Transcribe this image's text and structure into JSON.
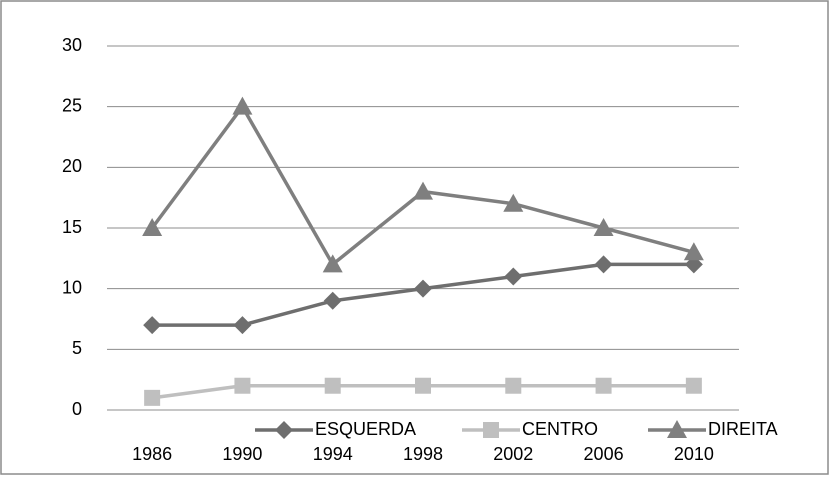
{
  "chart_data": {
    "type": "line",
    "categories": [
      "1986",
      "1990",
      "1994",
      "1998",
      "2002",
      "2006",
      "2010"
    ],
    "series": [
      {
        "name": "ESQUERDA",
        "color": "#6e6e6e",
        "marker": "diamond",
        "values": [
          7,
          7,
          9,
          10,
          11,
          12,
          12
        ]
      },
      {
        "name": "CENTRO",
        "color": "#bfbfbf",
        "marker": "square",
        "values": [
          1,
          2,
          2,
          2,
          2,
          2,
          2
        ]
      },
      {
        "name": "DIREITA",
        "color": "#7f7f7f",
        "marker": "triangle",
        "values": [
          15,
          25,
          12,
          18,
          17,
          15,
          13
        ]
      }
    ],
    "ylim": [
      0,
      30
    ],
    "yticks": [
      0,
      5,
      10,
      15,
      20,
      25,
      30
    ],
    "grid": true,
    "legend": "bottom"
  }
}
